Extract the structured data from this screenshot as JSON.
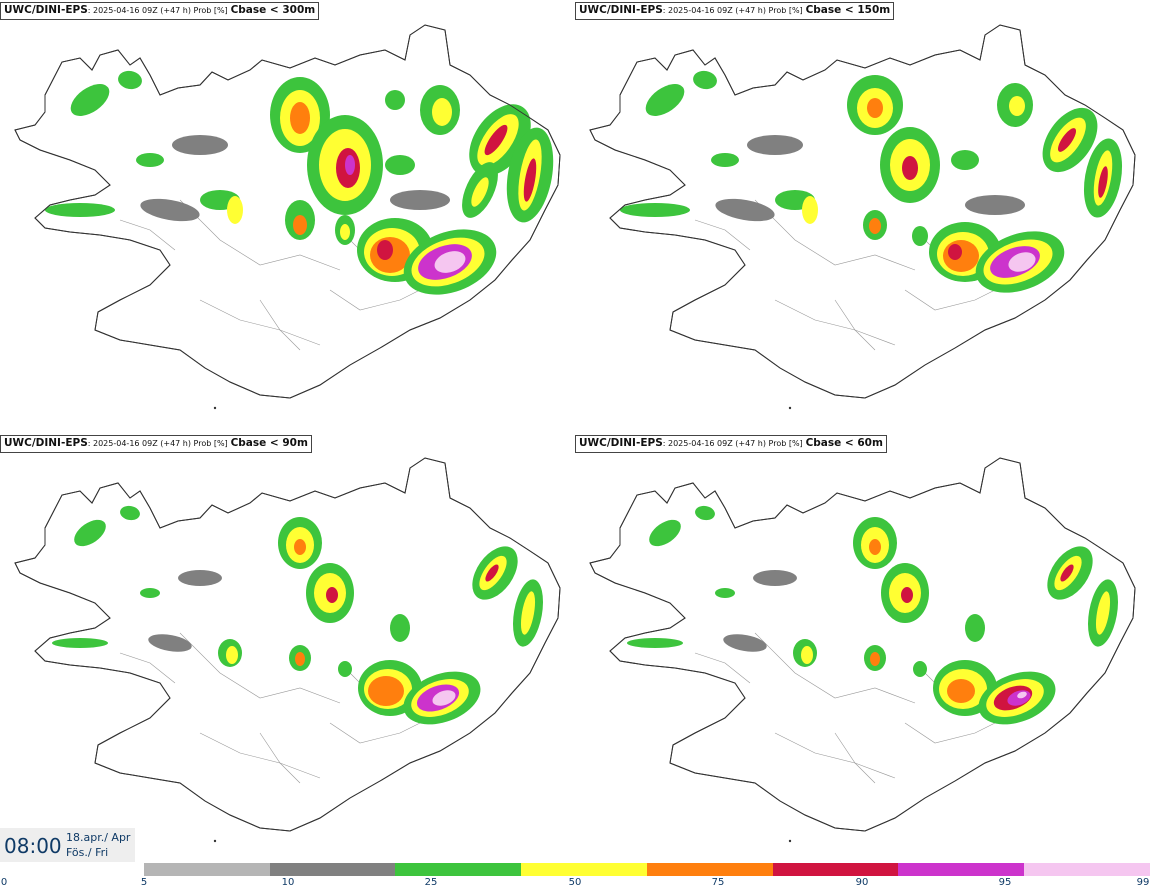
{
  "panels": [
    {
      "source": "UWC/DINI-EPS",
      "meta": ": 2025-04-16 09Z (+47 h) Prob [%]",
      "variable": "Cbase < 300m"
    },
    {
      "source": "UWC/DINI-EPS",
      "meta": ": 2025-04-16 09Z (+47 h) Prob [%]",
      "variable": "Cbase < 150m"
    },
    {
      "source": "UWC/DINI-EPS",
      "meta": ": 2025-04-16 09Z (+47 h) Prob [%]",
      "variable": "Cbase < 90m"
    },
    {
      "source": "UWC/DINI-EPS",
      "meta": ": 2025-04-16 09Z (+47 h) Prob [%]",
      "variable": "Cbase < 60m"
    }
  ],
  "time": {
    "clock": "08:00",
    "date_line1": "18.apr./ Apr",
    "date_line2": "Fös./ Fri"
  },
  "legend": {
    "ticks": [
      "0",
      "5",
      "10",
      "25",
      "50",
      "75",
      "90",
      "95",
      "99"
    ],
    "colors": [
      "#ffffff",
      "#b5b5b5",
      "#808080",
      "#3dc43d",
      "#ffff33",
      "#ff7f0e",
      "#d01440",
      "#cc33cc",
      "#f5c6f0"
    ]
  }
}
